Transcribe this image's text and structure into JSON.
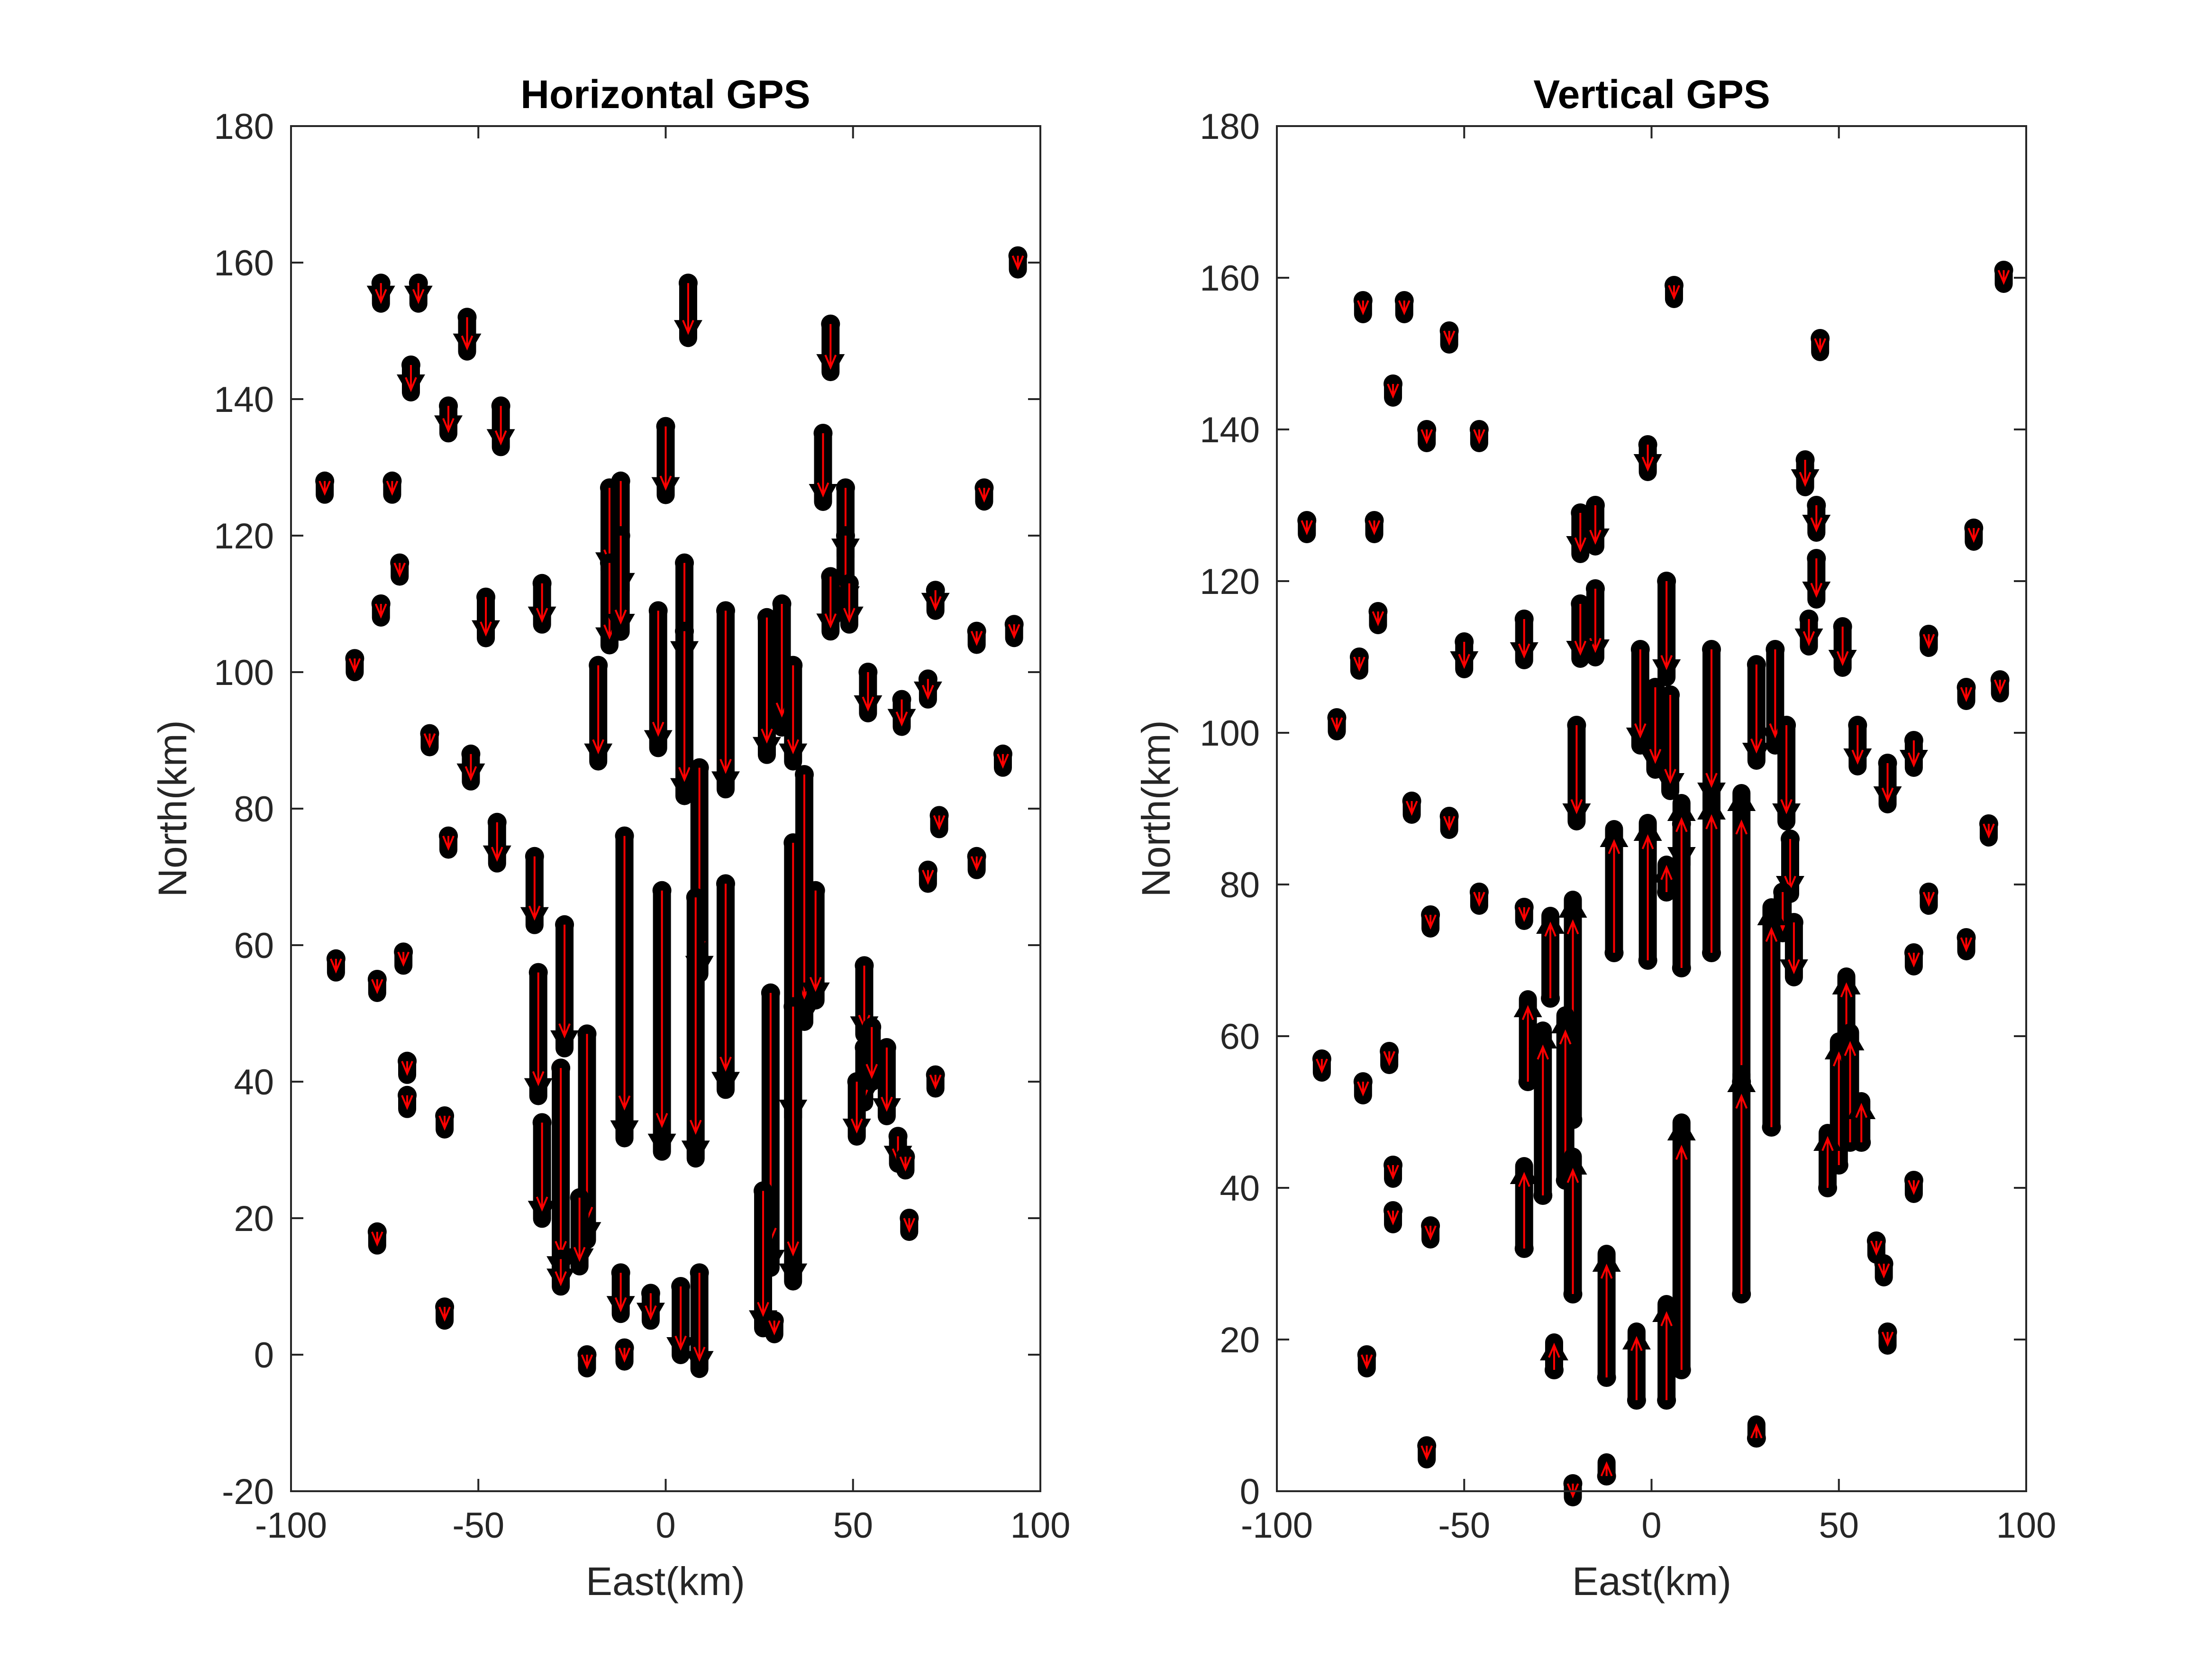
{
  "chart_data": [
    {
      "type": "quiver",
      "title": "Horizontal GPS",
      "xlabel": "East(km)",
      "ylabel": "North(km)",
      "xlim": [
        -100,
        100
      ],
      "ylim": [
        -20,
        180
      ],
      "xticks": [
        -100,
        -50,
        0,
        50,
        100
      ],
      "yticks": [
        -20,
        0,
        20,
        40,
        60,
        80,
        100,
        120,
        140,
        160,
        180
      ],
      "grid": false,
      "colors": {
        "observed": "#000000",
        "model": "#ff0000"
      },
      "points": [
        {
          "x": 6,
          "y": 157,
          "dx": 0,
          "dy": -4
        },
        {
          "x": -76,
          "y": 157,
          "dx": 0,
          "dy": -1.5
        },
        {
          "x": -66,
          "y": 157,
          "dx": 0,
          "dy": -1.5
        },
        {
          "x": -53,
          "y": 152,
          "dx": 0,
          "dy": -2.5
        },
        {
          "x": 44,
          "y": 151,
          "dx": 0,
          "dy": -3.5
        },
        {
          "x": -68,
          "y": 145,
          "dx": 0,
          "dy": -2
        },
        {
          "x": -58,
          "y": 139,
          "dx": 0,
          "dy": -2
        },
        {
          "x": -44,
          "y": 139,
          "dx": 0,
          "dy": -3
        },
        {
          "x": 0,
          "y": 136,
          "dx": 0,
          "dy": -5
        },
        {
          "x": 42,
          "y": 135,
          "dx": 0,
          "dy": -5
        },
        {
          "x": 94,
          "y": 161,
          "dx": 0,
          "dy": -1
        },
        {
          "x": -91,
          "y": 128,
          "dx": 0,
          "dy": -1
        },
        {
          "x": -73,
          "y": 128,
          "dx": 0,
          "dy": -1
        },
        {
          "x": -15,
          "y": 127,
          "dx": 0,
          "dy": -6
        },
        {
          "x": -12,
          "y": 128,
          "dx": 0,
          "dy": -8
        },
        {
          "x": 48,
          "y": 127,
          "dx": 0,
          "dy": -5
        },
        {
          "x": 85,
          "y": 127,
          "dx": 0,
          "dy": -1
        },
        {
          "x": 48,
          "y": 120,
          "dx": 0,
          "dy": -5
        },
        {
          "x": -71,
          "y": 116,
          "dx": 0,
          "dy": -1
        },
        {
          "x": -76,
          "y": 110,
          "dx": 0,
          "dy": -1
        },
        {
          "x": -48,
          "y": 111,
          "dx": 0,
          "dy": -3
        },
        {
          "x": -33,
          "y": 113,
          "dx": 0,
          "dy": -3
        },
        {
          "x": -15,
          "y": 116,
          "dx": 0,
          "dy": -6
        },
        {
          "x": -12,
          "y": 120,
          "dx": 0,
          "dy": -7
        },
        {
          "x": 5,
          "y": 116,
          "dx": 0,
          "dy": -7
        },
        {
          "x": 44,
          "y": 114,
          "dx": 0,
          "dy": -4
        },
        {
          "x": 49,
          "y": 113,
          "dx": 0,
          "dy": -3
        },
        {
          "x": 72,
          "y": 112,
          "dx": 0,
          "dy": -1.5
        },
        {
          "x": 93,
          "y": 107,
          "dx": 0,
          "dy": -1
        },
        {
          "x": -83,
          "y": 102,
          "dx": 0,
          "dy": -1
        },
        {
          "x": -2,
          "y": 109,
          "dx": 0,
          "dy": -10
        },
        {
          "x": 5,
          "y": 106,
          "dx": 0,
          "dy": -12
        },
        {
          "x": 16,
          "y": 109,
          "dx": 0,
          "dy": -13
        },
        {
          "x": 27,
          "y": 108,
          "dx": 0,
          "dy": -10
        },
        {
          "x": 31,
          "y": 110,
          "dx": 0,
          "dy": -9
        },
        {
          "x": 83,
          "y": 106,
          "dx": 0,
          "dy": -1
        },
        {
          "x": -18,
          "y": 101,
          "dx": 0,
          "dy": -7
        },
        {
          "x": 34,
          "y": 101,
          "dx": 0,
          "dy": -7
        },
        {
          "x": 54,
          "y": 100,
          "dx": 0,
          "dy": -3
        },
        {
          "x": 70,
          "y": 99,
          "dx": 0,
          "dy": -1.5
        },
        {
          "x": 63,
          "y": 96,
          "dx": 0,
          "dy": -2
        },
        {
          "x": -63,
          "y": 91,
          "dx": 0,
          "dy": -1
        },
        {
          "x": -52,
          "y": 88,
          "dx": 0,
          "dy": -2
        },
        {
          "x": 90,
          "y": 88,
          "dx": 0,
          "dy": -1
        },
        {
          "x": 9,
          "y": 86,
          "dx": 0,
          "dy": -15
        },
        {
          "x": 37,
          "y": 85,
          "dx": 0,
          "dy": -18
        },
        {
          "x": 73,
          "y": 79,
          "dx": 0,
          "dy": -1
        },
        {
          "x": -45,
          "y": 78,
          "dx": 0,
          "dy": -3
        },
        {
          "x": -58,
          "y": 76,
          "dx": 0,
          "dy": -1
        },
        {
          "x": -11,
          "y": 76,
          "dx": 0,
          "dy": -22
        },
        {
          "x": 34,
          "y": 75,
          "dx": 0,
          "dy": -20
        },
        {
          "x": -35,
          "y": 73,
          "dx": 0,
          "dy": -5
        },
        {
          "x": 83,
          "y": 73,
          "dx": 0,
          "dy": -1
        },
        {
          "x": 70,
          "y": 71,
          "dx": 0,
          "dy": -1
        },
        {
          "x": -1,
          "y": 68,
          "dx": 0,
          "dy": -19
        },
        {
          "x": 8,
          "y": 67,
          "dx": 0,
          "dy": -19
        },
        {
          "x": 16,
          "y": 69,
          "dx": 0,
          "dy": -15
        },
        {
          "x": 40,
          "y": 68,
          "dx": 0,
          "dy": -8
        },
        {
          "x": -27,
          "y": 63,
          "dx": 0,
          "dy": -9
        },
        {
          "x": -34,
          "y": 56,
          "dx": 0,
          "dy": -9
        },
        {
          "x": 53,
          "y": 57,
          "dx": 0,
          "dy": -5
        },
        {
          "x": -88,
          "y": 58,
          "dx": 0,
          "dy": -1
        },
        {
          "x": -70,
          "y": 59,
          "dx": 0,
          "dy": -1
        },
        {
          "x": -77,
          "y": 55,
          "dx": 0,
          "dy": -1
        },
        {
          "x": 28,
          "y": 53,
          "dx": 0,
          "dy": -20
        },
        {
          "x": 34,
          "y": 51,
          "dx": 0,
          "dy": -20
        },
        {
          "x": -21,
          "y": 47,
          "dx": 0,
          "dy": -15
        },
        {
          "x": -28,
          "y": 42,
          "dx": 0,
          "dy": -15
        },
        {
          "x": -33,
          "y": 34,
          "dx": 0,
          "dy": -7
        },
        {
          "x": 53,
          "y": 45,
          "dx": 0,
          "dy": -4
        },
        {
          "x": 55,
          "y": 48,
          "dx": 0,
          "dy": -4
        },
        {
          "x": 59,
          "y": 45,
          "dx": 0,
          "dy": -5
        },
        {
          "x": -69,
          "y": 43,
          "dx": 0,
          "dy": -1
        },
        {
          "x": 72,
          "y": 41,
          "dx": 0,
          "dy": -1
        },
        {
          "x": -69,
          "y": 38,
          "dx": 0,
          "dy": -1
        },
        {
          "x": -59,
          "y": 35,
          "dx": 0,
          "dy": -1
        },
        {
          "x": 51,
          "y": 40,
          "dx": 0,
          "dy": -4
        },
        {
          "x": 62,
          "y": 32,
          "dx": 0,
          "dy": -2
        },
        {
          "x": 64,
          "y": 29,
          "dx": 0,
          "dy": -1
        },
        {
          "x": 26,
          "y": 24,
          "dx": 0,
          "dy": -10
        },
        {
          "x": -23,
          "y": 23,
          "dx": 0,
          "dy": -5
        },
        {
          "x": -77,
          "y": 18,
          "dx": 0,
          "dy": -1
        },
        {
          "x": 65,
          "y": 20,
          "dx": 0,
          "dy": -1
        },
        {
          "x": -28,
          "y": 14,
          "dx": 0,
          "dy": -2
        },
        {
          "x": -12,
          "y": 12,
          "dx": 0,
          "dy": -3
        },
        {
          "x": -4,
          "y": 9,
          "dx": 0,
          "dy": -2
        },
        {
          "x": 4,
          "y": 10,
          "dx": 0,
          "dy": -5
        },
        {
          "x": 9,
          "y": 12,
          "dx": 0,
          "dy": -7
        },
        {
          "x": 29,
          "y": 5,
          "dx": 0,
          "dy": -1
        },
        {
          "x": -59,
          "y": 7,
          "dx": 0,
          "dy": -1
        },
        {
          "x": -21,
          "y": 0,
          "dx": 0,
          "dy": -1
        },
        {
          "x": -11,
          "y": 1,
          "dx": 0,
          "dy": -1
        }
      ]
    },
    {
      "type": "quiver",
      "title": "Vertical GPS",
      "xlabel": "East(km)",
      "ylabel": "North(km)",
      "xlim": [
        -100,
        100
      ],
      "ylim": [
        0,
        180
      ],
      "xticks": [
        -100,
        -50,
        0,
        50,
        100
      ],
      "yticks": [
        0,
        20,
        40,
        60,
        80,
        100,
        120,
        140,
        160,
        180
      ],
      "grid": false,
      "colors": {
        "observed": "#000000",
        "model": "#ff0000"
      },
      "points": [
        {
          "x": 6,
          "y": 159,
          "dz": -1
        },
        {
          "x": -77,
          "y": 157,
          "dz": -1
        },
        {
          "x": -66,
          "y": 157,
          "dz": -1
        },
        {
          "x": -54,
          "y": 153,
          "dz": -1
        },
        {
          "x": 45,
          "y": 152,
          "dz": -1
        },
        {
          "x": 94,
          "y": 161,
          "dz": -1
        },
        {
          "x": -69,
          "y": 146,
          "dz": -1
        },
        {
          "x": -60,
          "y": 140,
          "dz": -1
        },
        {
          "x": -46,
          "y": 140,
          "dz": -1
        },
        {
          "x": -1,
          "y": 138,
          "dz": -2
        },
        {
          "x": 41,
          "y": 136,
          "dz": -2
        },
        {
          "x": -92,
          "y": 128,
          "dz": -1
        },
        {
          "x": -74,
          "y": 128,
          "dz": -1
        },
        {
          "x": -19,
          "y": 129,
          "dz": -3
        },
        {
          "x": -15,
          "y": 130,
          "dz": -3
        },
        {
          "x": 44,
          "y": 130,
          "dz": -2
        },
        {
          "x": 86,
          "y": 127,
          "dz": -1
        },
        {
          "x": 44,
          "y": 123,
          "dz": -3
        },
        {
          "x": -73,
          "y": 116,
          "dz": -1
        },
        {
          "x": -15,
          "y": 119,
          "dz": -5
        },
        {
          "x": -19,
          "y": 117,
          "dz": -4
        },
        {
          "x": 4,
          "y": 120,
          "dz": -7
        },
        {
          "x": 42,
          "y": 115,
          "dz": -2
        },
        {
          "x": 51,
          "y": 114,
          "dz": -3
        },
        {
          "x": 74,
          "y": 113,
          "dz": -1
        },
        {
          "x": -78,
          "y": 110,
          "dz": -1
        },
        {
          "x": -50,
          "y": 112,
          "dz": -2
        },
        {
          "x": -34,
          "y": 115,
          "dz": -3
        },
        {
          "x": 93,
          "y": 107,
          "dz": -1
        },
        {
          "x": -84,
          "y": 102,
          "dz": -1
        },
        {
          "x": -3,
          "y": 111,
          "dz": -7
        },
        {
          "x": 1,
          "y": 106,
          "dz": -6
        },
        {
          "x": 5,
          "y": 105,
          "dz": -7
        },
        {
          "x": 16,
          "y": 111,
          "dz": -11
        },
        {
          "x": 28,
          "y": 109,
          "dz": -7
        },
        {
          "x": 33,
          "y": 111,
          "dz": -7
        },
        {
          "x": 84,
          "y": 106,
          "dz": -1
        },
        {
          "x": -20,
          "y": 101,
          "dz": -7
        },
        {
          "x": 36,
          "y": 101,
          "dz": -7
        },
        {
          "x": 55,
          "y": 101,
          "dz": -3
        },
        {
          "x": 70,
          "y": 99,
          "dz": -2
        },
        {
          "x": 63,
          "y": 96,
          "dz": -3
        },
        {
          "x": -64,
          "y": 91,
          "dz": -1
        },
        {
          "x": -54,
          "y": 89,
          "dz": -1
        },
        {
          "x": 90,
          "y": 88,
          "dz": -1
        },
        {
          "x": 8,
          "y": 88,
          "dz": -3
        },
        {
          "x": 37,
          "y": 86,
          "dz": -4
        },
        {
          "x": 74,
          "y": 79,
          "dz": -1
        },
        {
          "x": -46,
          "y": 79,
          "dz": -1
        },
        {
          "x": -59,
          "y": 76,
          "dz": -1
        },
        {
          "x": -34,
          "y": 77,
          "dz": -1
        },
        {
          "x": 84,
          "y": 73,
          "dz": -1
        },
        {
          "x": 70,
          "y": 71,
          "dz": -1
        },
        {
          "x": 35,
          "y": 79,
          "dz": -3
        },
        {
          "x": 38,
          "y": 75,
          "dz": -4
        },
        {
          "x": -10,
          "y": 71,
          "dz": 9
        },
        {
          "x": -1,
          "y": 70,
          "dz": 10
        },
        {
          "x": 4,
          "y": 79,
          "dz": 2
        },
        {
          "x": 8,
          "y": 69,
          "dz": 12
        },
        {
          "x": 16,
          "y": 71,
          "dz": 11
        },
        {
          "x": -27,
          "y": 65,
          "dz": 6
        },
        {
          "x": 24,
          "y": 54,
          "dz": 21
        },
        {
          "x": 32,
          "y": 48,
          "dz": 16
        },
        {
          "x": -21,
          "y": 49,
          "dz": 16
        },
        {
          "x": -33,
          "y": 54,
          "dz": 6
        },
        {
          "x": 52,
          "y": 57,
          "dz": 6
        },
        {
          "x": -88,
          "y": 57,
          "dz": -1
        },
        {
          "x": -70,
          "y": 58,
          "dz": -1
        },
        {
          "x": -77,
          "y": 54,
          "dz": -1
        },
        {
          "x": -29,
          "y": 39,
          "dz": 12
        },
        {
          "x": -23,
          "y": 41,
          "dz": 12
        },
        {
          "x": 50,
          "y": 43,
          "dz": 9
        },
        {
          "x": 53,
          "y": 46,
          "dz": 8
        },
        {
          "x": 56,
          "y": 46,
          "dz": 3
        },
        {
          "x": 47,
          "y": 40,
          "dz": 4
        },
        {
          "x": -69,
          "y": 43,
          "dz": -1
        },
        {
          "x": 70,
          "y": 41,
          "dz": -1
        },
        {
          "x": -69,
          "y": 37,
          "dz": -1
        },
        {
          "x": -59,
          "y": 35,
          "dz": -1
        },
        {
          "x": 60,
          "y": 33,
          "dz": -1
        },
        {
          "x": 62,
          "y": 30,
          "dz": -1
        },
        {
          "x": -34,
          "y": 32,
          "dz": 6
        },
        {
          "x": -21,
          "y": 26,
          "dz": 10
        },
        {
          "x": 24,
          "y": 26,
          "dz": 16
        },
        {
          "x": 8,
          "y": 16,
          "dz": 18
        },
        {
          "x": -12,
          "y": 15,
          "dz": 9
        },
        {
          "x": -4,
          "y": 12,
          "dz": 5
        },
        {
          "x": 4,
          "y": 12,
          "dz": 7
        },
        {
          "x": -76,
          "y": 18,
          "dz": -1
        },
        {
          "x": 63,
          "y": 21,
          "dz": -1
        },
        {
          "x": -26,
          "y": 16,
          "dz": 2
        },
        {
          "x": 28,
          "y": 7,
          "dz": 1
        },
        {
          "x": -60,
          "y": 6,
          "dz": -1
        },
        {
          "x": -21,
          "y": 1,
          "dz": -1
        },
        {
          "x": -12,
          "y": 2,
          "dz": 1
        }
      ]
    }
  ]
}
